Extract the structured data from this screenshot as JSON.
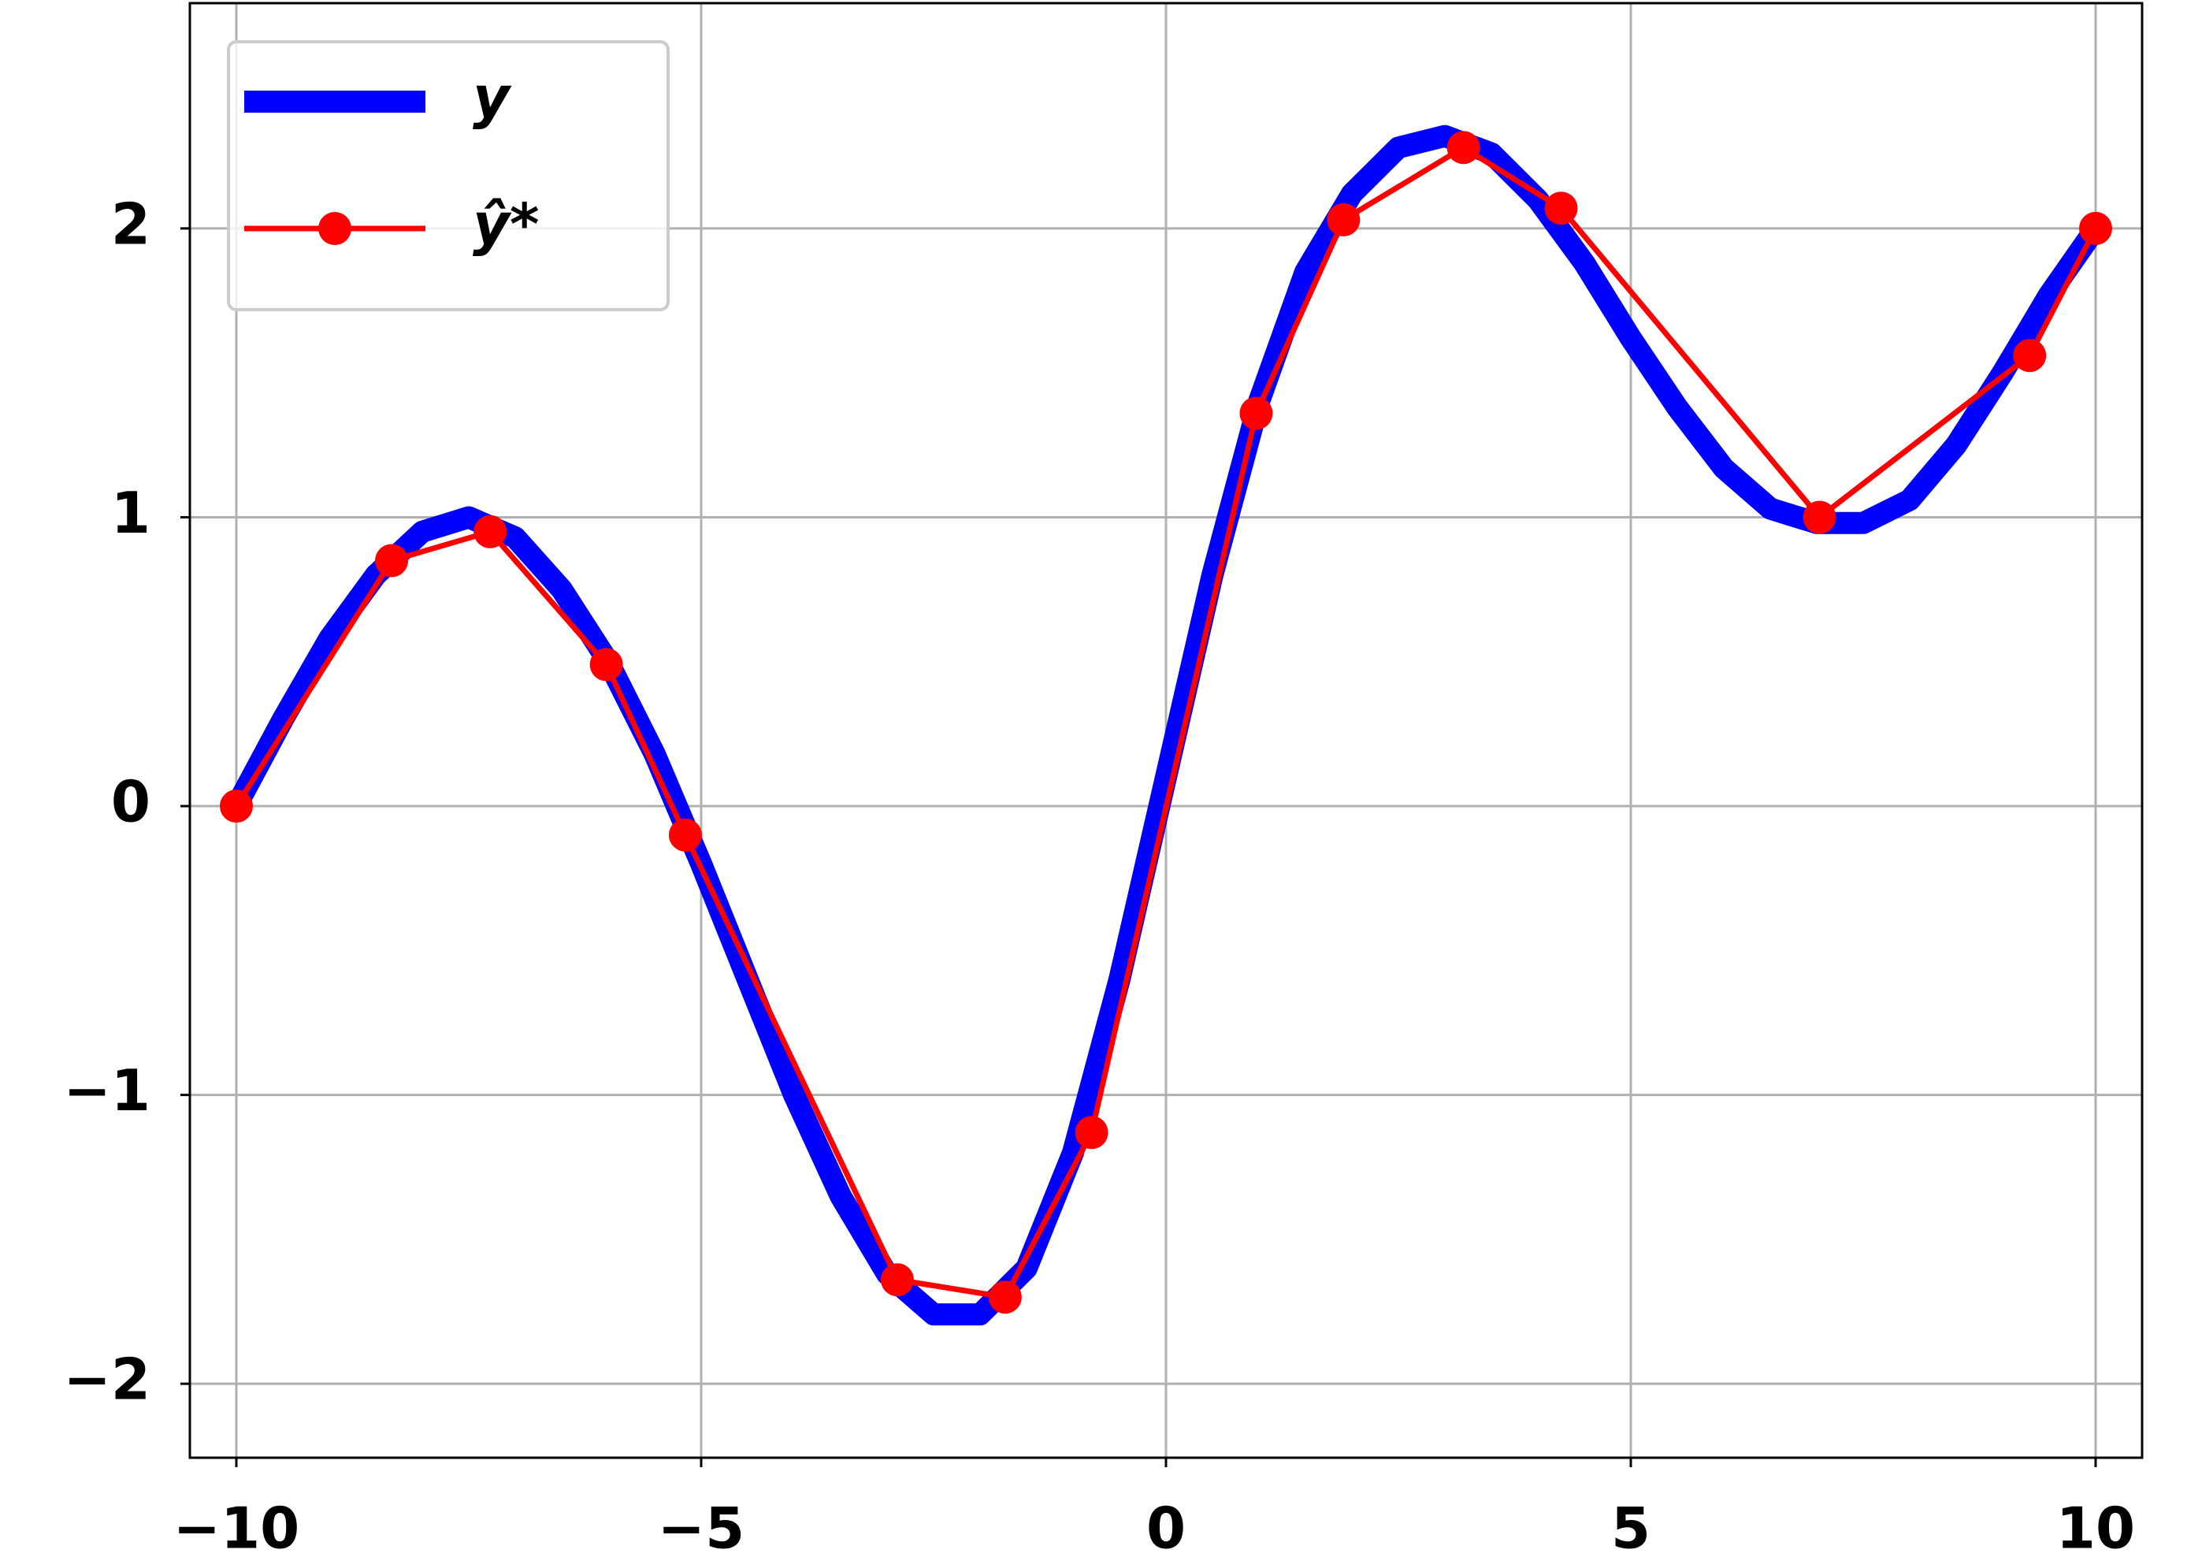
{
  "chart_data": {
    "type": "line",
    "xlim": [
      -10.5,
      10.5
    ],
    "ylim": [
      -2.256,
      2.78
    ],
    "xticks": [
      {
        "value": -10,
        "label": "−10"
      },
      {
        "value": -5,
        "label": "−5"
      },
      0,
      5,
      10
    ],
    "yticks": [
      {
        "value": -2,
        "label": "−2"
      },
      {
        "value": -1,
        "label": "−1"
      },
      0,
      1,
      2
    ],
    "grid": true,
    "legend": "upper left",
    "series": [
      {
        "name": "y",
        "color": "#0000ff",
        "x": [
          -10,
          -9.5,
          -9,
          -8.5,
          -8,
          -7.5,
          -7,
          -6.5,
          -6,
          -5.5,
          -5,
          -4.5,
          -4,
          -3.5,
          -3,
          -2.5,
          -2,
          -1.5,
          -1,
          -0.5,
          0,
          0.5,
          1,
          1.5,
          2,
          2.5,
          3,
          3.5,
          4,
          4.5,
          5,
          5.5,
          6,
          6.5,
          7,
          7.5,
          8,
          8.5,
          9,
          9.5,
          10
        ],
        "values": [
          0,
          0.3,
          0.58,
          0.8,
          0.95,
          1.0,
          0.93,
          0.75,
          0.5,
          0.18,
          -0.2,
          -0.6,
          -1.0,
          -1.35,
          -1.62,
          -1.76,
          -1.76,
          -1.6,
          -1.2,
          -0.6,
          0.1,
          0.8,
          1.4,
          1.85,
          2.12,
          2.28,
          2.32,
          2.26,
          2.1,
          1.88,
          1.62,
          1.38,
          1.17,
          1.03,
          0.98,
          0.98,
          1.06,
          1.25,
          1.5,
          1.77,
          2.0
        ]
      },
      {
        "name": "ŷ*",
        "color": "#ff0000",
        "x": [
          -10,
          -8.33,
          -7.27,
          -6.02,
          -5.17,
          -2.89,
          -1.73,
          -0.8,
          0.97,
          1.91,
          3.2,
          4.25,
          7.03,
          9.29,
          10
        ],
        "values": [
          0,
          0.85,
          0.95,
          0.49,
          -0.1,
          -1.64,
          -1.7,
          -1.13,
          1.36,
          2.03,
          2.28,
          2.07,
          1.0,
          1.56,
          2.0
        ]
      }
    ]
  }
}
